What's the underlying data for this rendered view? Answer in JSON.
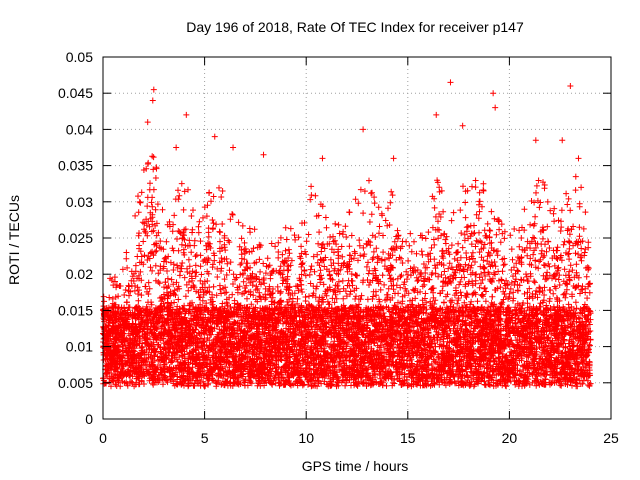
{
  "chart_data": {
    "type": "scatter",
    "title": "Day 196 of 2018, Rate Of TEC Index for receiver p147",
    "xlabel": "GPS time / hours",
    "ylabel": "ROTI / TECUs",
    "xlim": [
      0,
      25
    ],
    "ylim": [
      0,
      0.05
    ],
    "xticks": [
      0,
      5,
      10,
      15,
      20,
      25
    ],
    "xtick_labels": [
      "0",
      "5",
      "10",
      "15",
      "20",
      "25"
    ],
    "yticks": [
      0,
      0.005,
      0.01,
      0.015,
      0.02,
      0.025,
      0.03,
      0.035,
      0.04,
      0.045,
      0.05
    ],
    "ytick_labels": [
      "0",
      "0.005",
      "0.01",
      "0.015",
      "0.02",
      "0.025",
      "0.03",
      "0.035",
      "0.04",
      "0.045",
      "0.05"
    ],
    "grid": true,
    "marker": "+",
    "color": "#ff0000",
    "data_range_x": [
      0,
      24
    ],
    "envelope": {
      "hours": [
        0,
        0.5,
        1,
        1.5,
        2,
        2.5,
        3,
        3.5,
        4,
        4.5,
        5,
        5.5,
        6,
        6.5,
        7,
        7.5,
        8,
        8.5,
        9,
        9.5,
        10,
        10.5,
        11,
        11.5,
        12,
        12.5,
        13,
        13.5,
        14,
        14.5,
        15,
        15.5,
        16,
        16.5,
        17,
        17.5,
        18,
        18.5,
        19,
        19.5,
        20,
        20.5,
        21,
        21.5,
        22,
        22.5,
        23,
        23.5,
        24
      ],
      "typical_max": [
        0.022,
        0.02,
        0.021,
        0.028,
        0.036,
        0.038,
        0.028,
        0.03,
        0.036,
        0.028,
        0.03,
        0.037,
        0.03,
        0.028,
        0.03,
        0.026,
        0.024,
        0.028,
        0.027,
        0.026,
        0.031,
        0.035,
        0.028,
        0.027,
        0.028,
        0.032,
        0.035,
        0.03,
        0.031,
        0.033,
        0.026,
        0.025,
        0.027,
        0.036,
        0.03,
        0.031,
        0.034,
        0.033,
        0.034,
        0.028,
        0.025,
        0.03,
        0.031,
        0.034,
        0.031,
        0.029,
        0.035,
        0.033,
        0.026
      ]
    },
    "peaks": [
      {
        "x": 2.5,
        "y": 0.0455
      },
      {
        "x": 2.45,
        "y": 0.044
      },
      {
        "x": 2.2,
        "y": 0.041
      },
      {
        "x": 4.1,
        "y": 0.042
      },
      {
        "x": 3.6,
        "y": 0.0375
      },
      {
        "x": 5.5,
        "y": 0.039
      },
      {
        "x": 6.4,
        "y": 0.0375
      },
      {
        "x": 7.9,
        "y": 0.0365
      },
      {
        "x": 10.8,
        "y": 0.036
      },
      {
        "x": 12.8,
        "y": 0.04
      },
      {
        "x": 14.3,
        "y": 0.036
      },
      {
        "x": 16.4,
        "y": 0.042
      },
      {
        "x": 17.1,
        "y": 0.0465
      },
      {
        "x": 17.7,
        "y": 0.0405
      },
      {
        "x": 19.2,
        "y": 0.045
      },
      {
        "x": 19.3,
        "y": 0.043
      },
      {
        "x": 21.3,
        "y": 0.0385
      },
      {
        "x": 22.6,
        "y": 0.0385
      },
      {
        "x": 23.0,
        "y": 0.046
      },
      {
        "x": 23.4,
        "y": 0.036
      }
    ]
  }
}
